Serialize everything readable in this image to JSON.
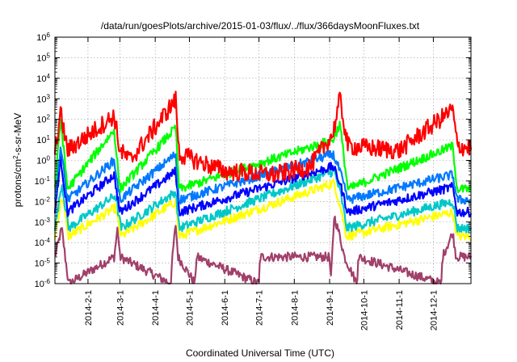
{
  "chart_data": {
    "type": "line",
    "title": "/data/run/goesPlots/archive/2015-01-03/flux/../flux/366daysMoonFluxes.txt",
    "xlabel": "Coordinated Universal Time (UTC)",
    "ylabel_parts": {
      "pre": "protons/cm",
      "sup": "2",
      "post": "-s-sr-MeV"
    },
    "y_scale": "log",
    "ylim": [
      1e-06,
      1000000.0
    ],
    "y_ticks": [
      {
        "value": 1e-06,
        "base": "10",
        "exp": "-6"
      },
      {
        "value": 1e-05,
        "base": "10",
        "exp": "-5"
      },
      {
        "value": 0.0001,
        "base": "10",
        "exp": "-4"
      },
      {
        "value": 0.001,
        "base": "10",
        "exp": "-3"
      },
      {
        "value": 0.01,
        "base": "10",
        "exp": "-2"
      },
      {
        "value": 0.1,
        "base": "10",
        "exp": "-1"
      },
      {
        "value": 1,
        "base": "10",
        "exp": "0"
      },
      {
        "value": 10.0,
        "base": "10",
        "exp": "1"
      },
      {
        "value": 100.0,
        "base": "10",
        "exp": "2"
      },
      {
        "value": 1000.0,
        "base": "10",
        "exp": "3"
      },
      {
        "value": 10000.0,
        "base": "10",
        "exp": "4"
      },
      {
        "value": 100000.0,
        "base": "10",
        "exp": "5"
      },
      {
        "value": 1000000.0,
        "base": "10",
        "exp": "6"
      }
    ],
    "xlim": [
      "2014-01-03",
      "2015-01-03"
    ],
    "x_ticks": [
      "2014-2-1",
      "2014-3-1",
      "2014-4-1",
      "2014-5-1",
      "2014-6-1",
      "2014-7-1",
      "2014-8-1",
      "2014-9-1",
      "2014-10-1",
      "2014-11-1",
      "2014-12-1"
    ],
    "grid": true,
    "legend": "none",
    "series": [
      {
        "color": "#a0406a",
        "baseline": 2e-05,
        "values_sampled": [
          [
            "2014-01-03",
            2e-05
          ],
          [
            "2014-01-09",
            0.0005
          ],
          [
            "2014-01-12",
            2e-05
          ],
          [
            "2014-01-15",
            1e-06
          ],
          [
            "2014-02-24",
            2e-05
          ],
          [
            "2014-02-27",
            0.0006
          ],
          [
            "2014-03-01",
            2e-05
          ],
          [
            "2014-04-15",
            1e-06
          ],
          [
            "2014-04-16",
            2e-05
          ],
          [
            "2014-04-19",
            0.0008
          ],
          [
            "2014-04-21",
            2e-05
          ],
          [
            "2014-05-06",
            1e-06
          ],
          [
            "2014-05-07",
            2e-05
          ],
          [
            "2014-07-01",
            1e-06
          ],
          [
            "2014-07-02",
            2e-05
          ],
          [
            "2014-09-01",
            2e-05
          ],
          [
            "2014-09-02",
            1e-06
          ],
          [
            "2014-09-05",
            0.002
          ],
          [
            "2014-09-10",
            0.0002
          ],
          [
            "2014-09-14",
            2e-05
          ],
          [
            "2014-09-25",
            1e-06
          ],
          [
            "2014-09-26",
            2e-05
          ],
          [
            "2014-12-08",
            1e-06
          ],
          [
            "2014-12-09",
            2e-05
          ],
          [
            "2014-12-18",
            0.0003
          ],
          [
            "2014-12-21",
            2e-05
          ],
          [
            "2015-01-03",
            2e-05
          ]
        ]
      },
      {
        "color": "#ffff00",
        "baseline": 0.0002,
        "values_sampled": [
          [
            "2014-01-03",
            0.0002
          ],
          [
            "2014-01-09",
            0.02
          ],
          [
            "2014-01-15",
            0.0002
          ],
          [
            "2014-02-25",
            0.005
          ],
          [
            "2014-03-02",
            0.0002
          ],
          [
            "2014-04-19",
            0.01
          ],
          [
            "2014-04-22",
            0.0002
          ],
          [
            "2014-09-05",
            0.08
          ],
          [
            "2014-09-11",
            0.004
          ],
          [
            "2014-09-16",
            0.0002
          ],
          [
            "2014-12-18",
            0.003
          ],
          [
            "2014-12-22",
            0.0002
          ],
          [
            "2015-01-03",
            0.0002
          ]
        ]
      },
      {
        "color": "#00c8c8",
        "baseline": 0.0005,
        "values_sampled": [
          [
            "2014-01-03",
            0.0005
          ],
          [
            "2014-01-09",
            0.08
          ],
          [
            "2014-01-15",
            0.0005
          ],
          [
            "2014-02-25",
            0.02
          ],
          [
            "2014-03-02",
            0.0005
          ],
          [
            "2014-04-19",
            0.03
          ],
          [
            "2014-04-22",
            0.0005
          ],
          [
            "2014-09-05",
            0.3
          ],
          [
            "2014-09-11",
            0.02
          ],
          [
            "2014-09-16",
            0.0005
          ],
          [
            "2014-12-18",
            0.01
          ],
          [
            "2014-12-22",
            0.0005
          ],
          [
            "2015-01-03",
            0.0005
          ]
        ]
      },
      {
        "color": "#0000ff",
        "baseline": 0.003,
        "values_sampled": [
          [
            "2014-01-03",
            0.003
          ],
          [
            "2014-01-08",
            1.5
          ],
          [
            "2014-01-14",
            0.003
          ],
          [
            "2014-02-24",
            0.2
          ],
          [
            "2014-03-01",
            0.003
          ],
          [
            "2014-04-19",
            0.3
          ],
          [
            "2014-04-22",
            0.003
          ],
          [
            "2014-09-04",
            0.5
          ],
          [
            "2014-09-10",
            0.08
          ],
          [
            "2014-09-17",
            0.003
          ],
          [
            "2014-12-18",
            0.05
          ],
          [
            "2014-12-22",
            0.003
          ],
          [
            "2015-01-03",
            0.003
          ]
        ]
      },
      {
        "color": "#0078ff",
        "baseline": 0.012,
        "values_sampled": [
          [
            "2014-01-03",
            0.012
          ],
          [
            "2014-01-08",
            5
          ],
          [
            "2014-01-14",
            0.012
          ],
          [
            "2014-02-24",
            1
          ],
          [
            "2014-03-01",
            0.012
          ],
          [
            "2014-04-19",
            2
          ],
          [
            "2014-04-22",
            0.012
          ],
          [
            "2014-09-04",
            2
          ],
          [
            "2014-09-10",
            0.3
          ],
          [
            "2014-09-17",
            0.012
          ],
          [
            "2014-12-18",
            0.2
          ],
          [
            "2014-12-22",
            0.012
          ],
          [
            "2015-01-03",
            0.012
          ]
        ]
      },
      {
        "color": "#00ff00",
        "baseline": 0.04,
        "values_sampled": [
          [
            "2014-01-03",
            0.04
          ],
          [
            "2014-01-08",
            120
          ],
          [
            "2014-01-14",
            0.04
          ],
          [
            "2014-02-24",
            30
          ],
          [
            "2014-03-01",
            0.04
          ],
          [
            "2014-04-19",
            40
          ],
          [
            "2014-04-22",
            0.04
          ],
          [
            "2014-09-04",
            10
          ],
          [
            "2014-09-10",
            60
          ],
          [
            "2014-09-17",
            0.04
          ],
          [
            "2014-12-18",
            5
          ],
          [
            "2014-12-22",
            0.04
          ],
          [
            "2015-01-03",
            0.04
          ]
        ]
      },
      {
        "color": "#ff0000",
        "baseline": 1,
        "values_sampled": [
          [
            "2014-01-03",
            3
          ],
          [
            "2014-01-08",
            200
          ],
          [
            "2014-01-14",
            3
          ],
          [
            "2014-02-24",
            150
          ],
          [
            "2014-03-01",
            3
          ],
          [
            "2014-03-10",
            1
          ],
          [
            "2014-04-19",
            900
          ],
          [
            "2014-04-22",
            2
          ],
          [
            "2014-06-01",
            0.3
          ],
          [
            "2014-07-15",
            0.2
          ],
          [
            "2014-08-15",
            0.5
          ],
          [
            "2014-09-04",
            20
          ],
          [
            "2014-09-10",
            1000
          ],
          [
            "2014-09-17",
            5
          ],
          [
            "2014-11-01",
            3
          ],
          [
            "2014-12-18",
            300
          ],
          [
            "2014-12-22",
            5
          ],
          [
            "2015-01-03",
            4
          ]
        ]
      }
    ]
  }
}
